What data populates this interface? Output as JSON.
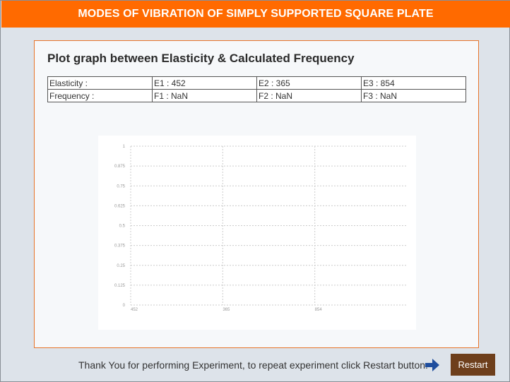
{
  "header": {
    "title": "MODES OF VIBRATION OF SIMPLY SUPPORTED SQUARE PLATE"
  },
  "panel": {
    "title": "Plot graph between Elasticity & Calculated Frequency",
    "table": {
      "rows": [
        [
          "Elasticity :",
          "E1 : 452",
          "E2 : 365",
          "E3 : 854"
        ],
        [
          "Frequency :",
          "F1 : NaN",
          "F2 : NaN",
          "F3 : NaN"
        ]
      ]
    }
  },
  "chart_data": {
    "type": "line",
    "title": "",
    "xlabel": "",
    "ylabel": "",
    "categories": [
      "452",
      "365",
      "854"
    ],
    "series": [
      {
        "values": [
          null,
          null,
          null
        ]
      }
    ],
    "ylim": [
      0,
      1
    ],
    "y_ticks": [
      "0",
      "0.125",
      "0.25",
      "0.375",
      "0.5",
      "0.625",
      "0.75",
      "0.875",
      "1"
    ],
    "grid": true,
    "colors": {
      "grid": "#cccccc",
      "tick_text": "#999999"
    }
  },
  "footer": {
    "message": "Thank You for performing Experiment, to repeat experiment click Restart button.",
    "arrow_icon": "arrow-right-icon",
    "restart_label": "Restart"
  },
  "colors": {
    "header_bg": "#ff6a00",
    "panel_border": "#e8742a",
    "button_bg": "#6e3f1c",
    "arrow": "#1f4e9e"
  }
}
